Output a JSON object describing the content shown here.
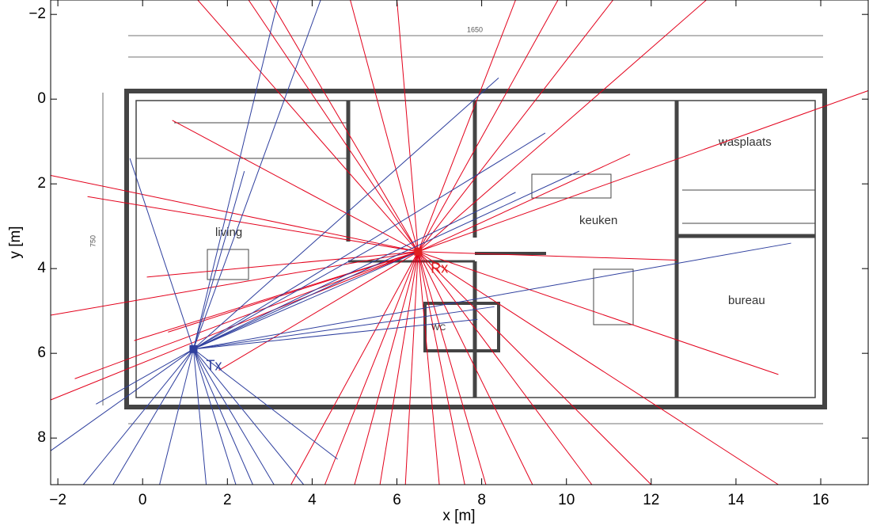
{
  "chart_data": {
    "type": "ray",
    "xlabel": "x [m]",
    "ylabel": "y [m]",
    "xlim": [
      -2.17,
      17.12
    ],
    "ylim": [
      -2.34,
      9.1
    ],
    "y_reversed": true,
    "xticks": [
      {
        "value": -2,
        "label": "−2"
      },
      0,
      2,
      4,
      6,
      8,
      10,
      12,
      14,
      16
    ],
    "yticks": [
      {
        "value": -2,
        "label": "−2"
      },
      0,
      2,
      4,
      6,
      8
    ],
    "floor_plan_labels": [
      "living",
      "keuken",
      "wasplaats",
      "bureau",
      "WC",
      "1650",
      "750"
    ],
    "points": [
      {
        "label": "Tx",
        "x": 1.2,
        "y": 5.9,
        "color": "#2e3f9e"
      },
      {
        "label": "Rx",
        "x": 6.5,
        "y": 3.6,
        "color": "#e02020"
      }
    ],
    "rays": [
      {
        "from": 1,
        "color": "#e3001b",
        "x": [
          -2.17,
          -2.17,
          -2.17,
          4.9,
          6.0,
          2.5,
          17.12,
          12.0,
          9.2,
          6.2,
          5.0,
          3.5,
          15.0,
          12.6,
          -1.3,
          -1.6,
          0.6,
          1.3,
          8.8,
          11.1,
          13.3,
          8.1,
          10.6,
          15.0,
          4.3,
          5.6,
          7.0,
          0.7,
          -0.2,
          3.0,
          9.8,
          1.8,
          0.1,
          11.5,
          7.6
        ],
        "y": [
          1.8,
          5.1,
          7.1,
          -2.34,
          -2.34,
          -2.34,
          -0.2,
          9.1,
          9.1,
          9.1,
          9.1,
          9.1,
          6.5,
          3.8,
          2.3,
          6.6,
          5.5,
          -2.34,
          -2.34,
          -2.34,
          -2.34,
          9.1,
          9.1,
          9.1,
          9.1,
          9.1,
          9.1,
          0.5,
          5.7,
          -2.34,
          -2.34,
          6.4,
          4.2,
          1.3,
          9.1
        ]
      },
      {
        "from": 0,
        "color": "#2e3f9e",
        "x": [
          -2.17,
          -1.4,
          -0.7,
          0.4,
          1.5,
          2.6,
          3.1,
          3.8,
          4.6,
          6.5,
          8.8,
          9.5,
          8.4,
          4.2,
          3.2,
          2.4,
          -0.3,
          10.3,
          15.3,
          7.9,
          8.3,
          -1.1,
          2.2,
          5.8
        ],
        "y": [
          8.3,
          9.1,
          9.1,
          9.1,
          9.1,
          9.1,
          9.1,
          9.1,
          8.5,
          3.6,
          2.2,
          0.8,
          -0.5,
          -2.34,
          -2.34,
          1.7,
          1.4,
          1.7,
          3.4,
          5.2,
          4.9,
          7.2,
          9.1,
          3.3
        ]
      }
    ]
  }
}
